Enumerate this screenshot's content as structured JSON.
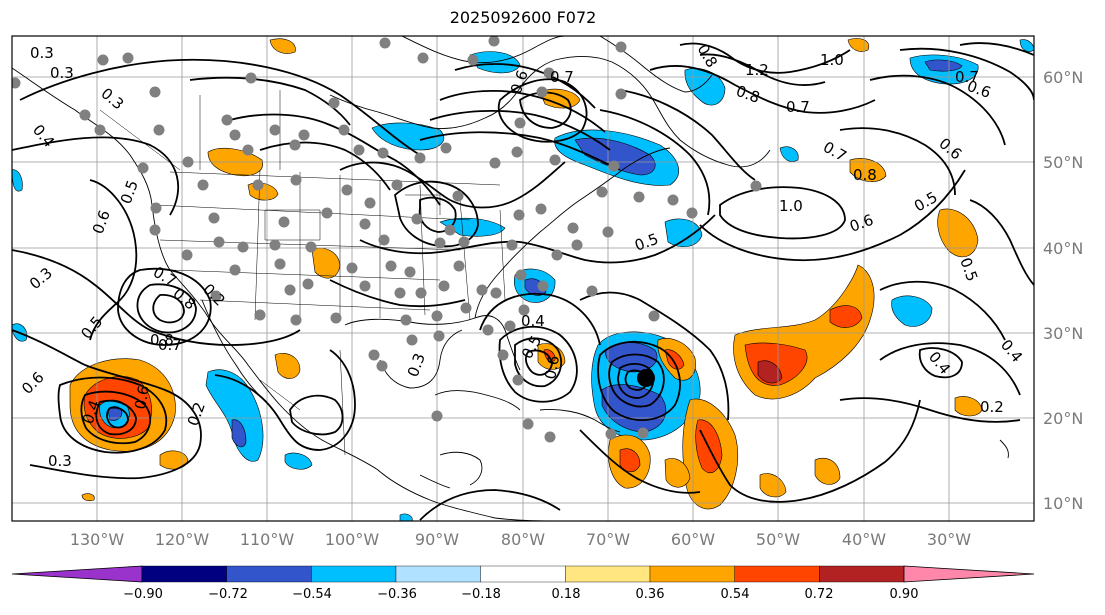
{
  "title": "2025092600 F072",
  "lat_labels": [
    "60°N",
    "50°N",
    "40°N",
    "30°N",
    "20°N",
    "10°N"
  ],
  "lon_labels": [
    "130°W",
    "120°W",
    "110°W",
    "100°W",
    "90°W",
    "80°W",
    "70°W",
    "60°W",
    "50°W",
    "40°W",
    "30°W"
  ],
  "colorbar": {
    "ticks": [
      "−0.90",
      "−0.72",
      "−0.54",
      "−0.36",
      "−0.18",
      "0.18",
      "0.36",
      "0.54",
      "0.72",
      "0.90"
    ],
    "colors": [
      "#9933cc",
      "#000080",
      "#3355cc",
      "#00bfff",
      "#b0e2ff",
      "#ffffff",
      "#ffe680",
      "#ffa500",
      "#ff4500",
      "#b22222",
      "#ff88aa"
    ],
    "extend": "both"
  },
  "contour_labels": [
    "0.3",
    "0.3",
    "0.3",
    "0.4",
    "0.6",
    "0.5",
    "0.7",
    "0.8",
    "0.2",
    "0.3",
    "0.6",
    "0.5",
    "0.4",
    "0.8",
    "0.7",
    "0.6",
    "0.6",
    "0.7",
    "0.8",
    "1.2",
    "0.8",
    "0.7",
    "1.0",
    "0.6",
    "0.7",
    "0.8",
    "1.0",
    "0.5",
    "0.6",
    "0.5",
    "0.4",
    "0.4",
    "0.2",
    "0.5",
    "0.7",
    "0.6",
    "0.3",
    "0.6",
    "0.2",
    "0.3",
    "0.5",
    "0.4"
  ],
  "colors": {
    "coast": "#000000",
    "grid": "#999999",
    "dots": "#808080",
    "contour": "#000000"
  }
}
